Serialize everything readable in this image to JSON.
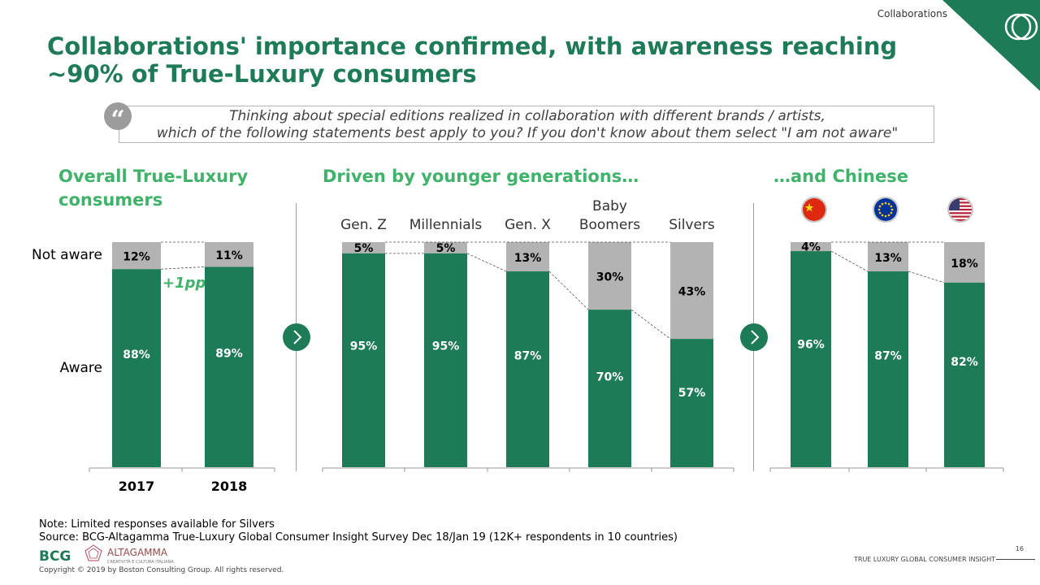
{
  "header": {
    "section_tag": "Collaborations",
    "title": "Collaborations' importance confirmed, with awareness reaching ~90% of True-Luxury consumers"
  },
  "question": {
    "line1": "Thinking about special editions realized in collaboration with different brands / artists,",
    "line2": "which of the following statements best apply to you? If you don't know about them select \"I am not aware\""
  },
  "panels": {
    "overall_heading_line1": "Overall True-Luxury",
    "overall_heading_line2": "consumers",
    "generations_heading": "Driven by younger generations…",
    "chinese_heading": "…and Chinese",
    "not_aware_label": "Not aware",
    "aware_label": "Aware",
    "delta_label": "+1pp"
  },
  "colors": {
    "aware": "#1e7b57",
    "not_aware": "#b3b3b3",
    "accent": "#3fb36a"
  },
  "chart_data": [
    {
      "type": "bar",
      "stacked": true,
      "categories": [
        "2017",
        "2018"
      ],
      "series": [
        {
          "name": "Aware",
          "values": [
            88,
            89
          ],
          "labels": [
            "88%",
            "89%"
          ]
        },
        {
          "name": "Not aware",
          "values": [
            12,
            11
          ],
          "labels": [
            "12%",
            "11%"
          ]
        }
      ],
      "ylim": [
        0,
        100
      ]
    },
    {
      "type": "bar",
      "stacked": true,
      "categories": [
        "Gen. Z",
        "Millennials",
        "Gen. X",
        "Baby|Boomers",
        "Silvers"
      ],
      "series": [
        {
          "name": "Aware",
          "values": [
            95,
            95,
            87,
            70,
            57
          ],
          "labels": [
            "95%",
            "95%",
            "87%",
            "70%",
            "57%"
          ]
        },
        {
          "name": "Not aware",
          "values": [
            5,
            5,
            13,
            30,
            43
          ],
          "labels": [
            "5%",
            "5%",
            "13%",
            "30%",
            "43%"
          ]
        }
      ],
      "ylim": [
        0,
        100
      ]
    },
    {
      "type": "bar",
      "stacked": true,
      "categories": [
        "china-flag-icon",
        "eu-flag-icon",
        "usa-flag-icon"
      ],
      "series": [
        {
          "name": "Aware",
          "values": [
            96,
            87,
            82
          ],
          "labels": [
            "96%",
            "87%",
            "82%"
          ]
        },
        {
          "name": "Not aware",
          "values": [
            4,
            13,
            18
          ],
          "labels": [
            "4%",
            "13%",
            "18%"
          ]
        }
      ],
      "ylim": [
        0,
        100
      ]
    }
  ],
  "footer": {
    "note": "Note: Limited responses available for Silvers",
    "source": "Source: BCG-Altagamma True-Luxury Global Consumer Insight Survey Dec 18/Jan 19 (12K+ respondents in 10 countries)",
    "bcg_logo": "BCG",
    "altagamma_logo": "ALTAGAMMA",
    "altagamma_sub": "CREATIVITÀ E CULTURA ITALIANA",
    "copyright": "Copyright © 2019 by Boston Consulting Group. All rights reserved.",
    "report_name": "TRUE LUXURY GLOBAL CONSUMER INSIGHT",
    "page_number": "16"
  }
}
